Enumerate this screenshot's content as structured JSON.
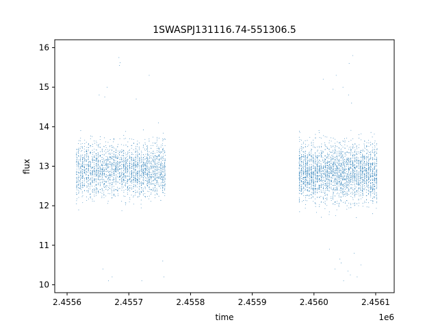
{
  "chart_data": {
    "type": "scatter",
    "title": "1SWASPJ131116.74-551306.5",
    "xlabel": "time",
    "ylabel": "flux",
    "x_offset_label": "1e6",
    "xlim": [
      2455580,
      2456130
    ],
    "ylim": [
      9.8,
      16.2
    ],
    "x_ticks": [
      2455600,
      2455700,
      2455800,
      2455900,
      2456000,
      2456100
    ],
    "x_tick_labels": [
      "2.4556",
      "2.4557",
      "2.4558",
      "2.4559",
      "2.4560",
      "2.4561"
    ],
    "y_ticks": [
      10,
      11,
      12,
      13,
      14,
      15,
      16
    ],
    "y_tick_labels": [
      "10",
      "11",
      "12",
      "13",
      "14",
      "15",
      "16"
    ],
    "grid": false,
    "marker_color": "#1f77b4",
    "series": [
      {
        "segments": [
          {
            "x_range": [
              2455614,
              2455760
            ],
            "mean": 12.9,
            "spread": 0.55,
            "n": 2600
          },
          {
            "x_range": [
              2455975,
              2456103
            ],
            "mean": 12.85,
            "spread": 0.6,
            "n": 3000
          }
        ],
        "outliers": [
          [
            2455684,
            15.75
          ],
          [
            2455685,
            15.55
          ],
          [
            2455686,
            15.62
          ],
          [
            2455733,
            15.3
          ],
          [
            2455652,
            14.8
          ],
          [
            2455661,
            14.75
          ],
          [
            2455665,
            15.0
          ],
          [
            2455712,
            14.7
          ],
          [
            2455748,
            14.1
          ],
          [
            2455755,
            10.6
          ],
          [
            2455757,
            10.2
          ],
          [
            2455667,
            10.1
          ],
          [
            2455673,
            10.2
          ],
          [
            2455721,
            10.1
          ],
          [
            2455658,
            10.4
          ],
          [
            2456063,
            15.8
          ],
          [
            2456057,
            15.6
          ],
          [
            2456036,
            15.3
          ],
          [
            2456047,
            15.0
          ],
          [
            2456031,
            14.95
          ],
          [
            2456056,
            14.8
          ],
          [
            2456061,
            14.6
          ],
          [
            2456015,
            15.2
          ],
          [
            2456048,
            10.1
          ],
          [
            2456059,
            10.25
          ],
          [
            2456034,
            10.4
          ],
          [
            2456042,
            10.65
          ],
          [
            2456025,
            10.9
          ],
          [
            2456065,
            10.8
          ],
          [
            2456076,
            10.5
          ],
          [
            2456055,
            10.35
          ],
          [
            2456044,
            10.55
          ],
          [
            2456070,
            10.2
          ]
        ]
      }
    ]
  }
}
